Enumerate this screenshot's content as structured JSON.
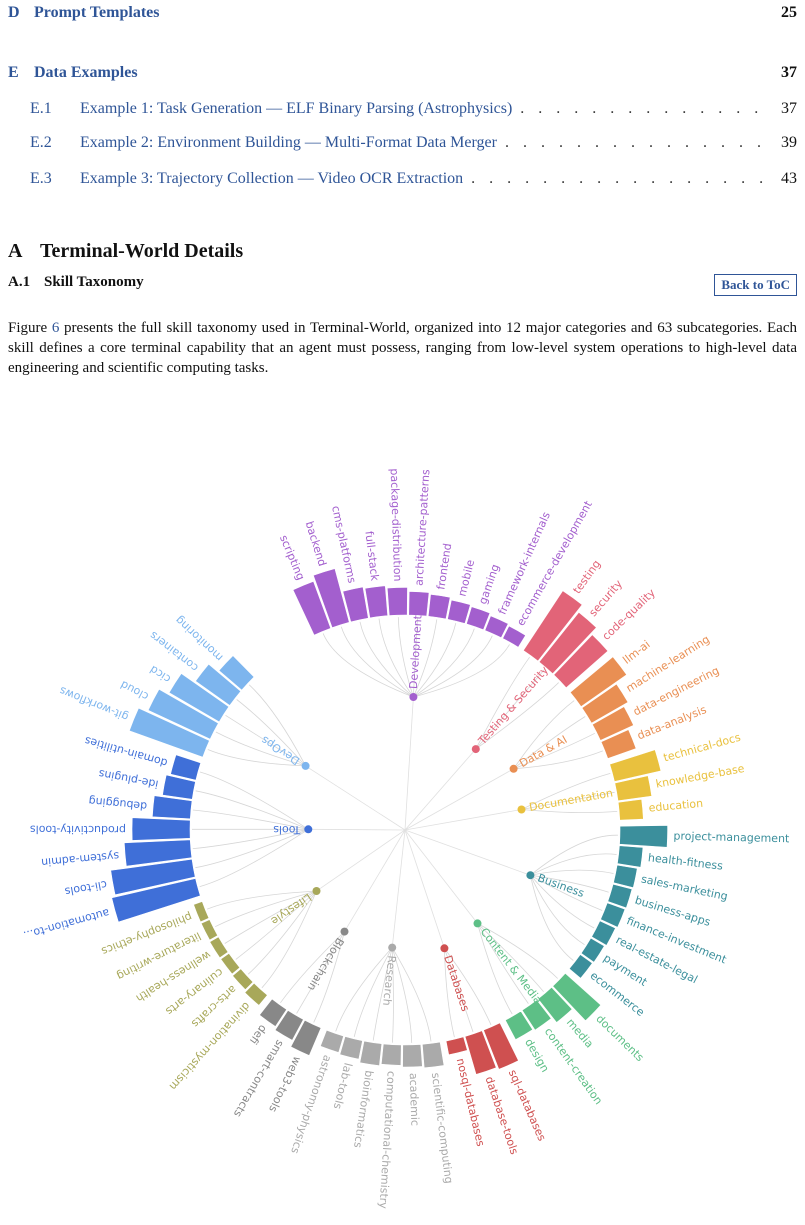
{
  "toc": {
    "d": {
      "num": "D",
      "title": "Prompt Templates",
      "page": "25"
    },
    "e": {
      "num": "E",
      "title": "Data Examples",
      "page": "37"
    },
    "subs": [
      {
        "num": "E.1",
        "title": "Example 1: Task Generation — ELF Binary Parsing (Astrophysics)",
        "page": "37"
      },
      {
        "num": "E.2",
        "title": "Example 2: Environment Building — Multi-Format Data Merger",
        "page": "39"
      },
      {
        "num": "E.3",
        "title": "Example 3: Trajectory Collection — Video OCR Extraction",
        "page": "43"
      }
    ],
    "dots": ". . . . . . . . . . . . . . . . . . . . . . . . . . . . . . . . . ."
  },
  "section": {
    "num": "A",
    "title": "Terminal-World Details"
  },
  "subsection": {
    "num": "A.1",
    "title": "Skill Taxonomy"
  },
  "back_to_toc": "Back to ToC",
  "paragraph": {
    "pre": "Figure ",
    "ref": "6",
    "post": " presents the full skill taxonomy used in Terminal-World, organized into 12 major categories and 63 subcategories. Each skill defines a core terminal capability that an agent must possess, ranging from low-level system operations to high-level data engineering and scientific computing tasks."
  },
  "chart_data": {
    "type": "radial-bar-tree",
    "title": "",
    "categories": [
      {
        "name": "Development",
        "color": "#a35fce",
        "skills": [
          {
            "name": "scripting",
            "value": 0.55
          },
          {
            "name": "backend",
            "value": 0.62
          },
          {
            "name": "cms-platforms",
            "value": 0.32
          },
          {
            "name": "full-stack",
            "value": 0.3
          },
          {
            "name": "package-distribution",
            "value": 0.27
          },
          {
            "name": "architecture-patterns",
            "value": 0.22
          },
          {
            "name": "frontend",
            "value": 0.2
          },
          {
            "name": "mobile",
            "value": 0.17
          },
          {
            "name": "gaming",
            "value": 0.15
          },
          {
            "name": "framework-internals",
            "value": 0.12
          },
          {
            "name": "ecommerce-development",
            "value": 0.1
          }
        ]
      },
      {
        "name": "Testing & Security",
        "color": "#e26478",
        "skills": [
          {
            "name": "testing",
            "value": 0.82
          },
          {
            "name": "security",
            "value": 0.72
          },
          {
            "name": "code-quality",
            "value": 0.62
          }
        ]
      },
      {
        "name": "Data & AI",
        "color": "#e98f53",
        "skills": [
          {
            "name": "llm-ai",
            "value": 0.62
          },
          {
            "name": "machine-learning",
            "value": 0.45
          },
          {
            "name": "data-engineering",
            "value": 0.38
          },
          {
            "name": "data-analysis",
            "value": 0.3
          }
        ]
      },
      {
        "name": "Documentation",
        "color": "#e9c13e",
        "skills": [
          {
            "name": "technical-docs",
            "value": 0.52
          },
          {
            "name": "knowledge-base",
            "value": 0.35
          },
          {
            "name": "education",
            "value": 0.22
          }
        ]
      },
      {
        "name": "Business",
        "color": "#3b8f9c",
        "skills": [
          {
            "name": "project-management",
            "value": 0.52
          },
          {
            "name": "health-fitness",
            "value": 0.22
          },
          {
            "name": "sales-marketing",
            "value": 0.18
          },
          {
            "name": "business-apps",
            "value": 0.17
          },
          {
            "name": "finance-investment",
            "value": 0.16
          },
          {
            "name": "real-estate-legal",
            "value": 0.14
          },
          {
            "name": "payment",
            "value": 0.12
          },
          {
            "name": "ecommerce",
            "value": 0.11
          }
        ]
      },
      {
        "name": "Content & Media",
        "color": "#5dbf86",
        "skills": [
          {
            "name": "documents",
            "value": 0.52
          },
          {
            "name": "media",
            "value": 0.3
          },
          {
            "name": "content-creation",
            "value": 0.22
          },
          {
            "name": "design",
            "value": 0.2
          }
        ]
      },
      {
        "name": "Databases",
        "color": "#cf5050",
        "skills": [
          {
            "name": "sql-databases",
            "value": 0.45
          },
          {
            "name": "database-tools",
            "value": 0.42
          },
          {
            "name": "nosql-databases",
            "value": 0.1
          }
        ]
      },
      {
        "name": "Research",
        "color": "#aaaaaa",
        "skills": [
          {
            "name": "scientific-computing",
            "value": 0.22
          },
          {
            "name": "academic",
            "value": 0.2
          },
          {
            "name": "computational-chemistry",
            "value": 0.18
          },
          {
            "name": "bioinformatics",
            "value": 0.2
          },
          {
            "name": "lab-tools",
            "value": 0.16
          },
          {
            "name": "astronomy-physics",
            "value": 0.14
          }
        ]
      },
      {
        "name": "Blockchain",
        "color": "#888888",
        "skills": [
          {
            "name": "web3-tools",
            "value": 0.3
          },
          {
            "name": "smart-contracts",
            "value": 0.22
          },
          {
            "name": "defi",
            "value": 0.18
          }
        ]
      },
      {
        "name": "Lifestyle",
        "color": "#a8a85a",
        "skills": [
          {
            "name": "divination-mysticism",
            "value": 0.09
          },
          {
            "name": "arts-crafts",
            "value": 0.06
          },
          {
            "name": "culinary-arts",
            "value": 0.05
          },
          {
            "name": "wellness-health",
            "value": 0.05
          },
          {
            "name": "literature-writing",
            "value": 0.04
          },
          {
            "name": "philosophy-ethics",
            "value": 0.04
          }
        ]
      },
      {
        "name": "Tools",
        "color": "#3f6fd8",
        "skills": [
          {
            "name": "automation-to...",
            "value": 1.0
          },
          {
            "name": "cli-tools",
            "value": 0.95
          },
          {
            "name": "system-admin",
            "value": 0.75
          },
          {
            "name": "productivity-tools",
            "value": 0.65
          },
          {
            "name": "debugging",
            "value": 0.4
          },
          {
            "name": "ide-plugins",
            "value": 0.3
          },
          {
            "name": "domain-utilities",
            "value": 0.25
          }
        ]
      },
      {
        "name": "DevOps",
        "color": "#7db5ee",
        "skills": [
          {
            "name": "git-workflows",
            "value": 0.9
          },
          {
            "name": "cloud",
            "value": 0.78
          },
          {
            "name": "cicd",
            "value": 0.65
          },
          {
            "name": "containers",
            "value": 0.45
          },
          {
            "name": "monitoring",
            "value": 0.3
          }
        ]
      }
    ]
  }
}
